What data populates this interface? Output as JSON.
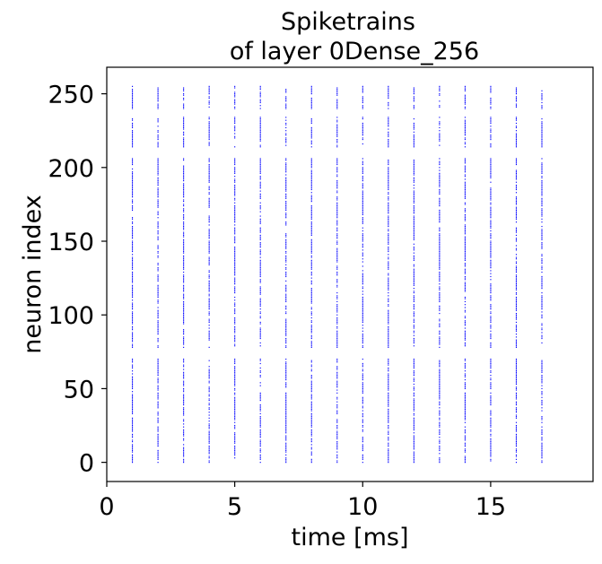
{
  "chart_data": {
    "type": "scatter",
    "title_lines": [
      "Spiketrains",
      "of layer 0Dense_256"
    ],
    "xlabel": "time [ms]",
    "ylabel": "neuron index",
    "xlim": [
      0,
      19
    ],
    "ylim": [
      -13,
      268
    ],
    "xticks": [
      0,
      5,
      10,
      15
    ],
    "yticks": [
      0,
      50,
      100,
      150,
      200,
      250
    ],
    "grid": false,
    "legend": "none",
    "marker_color": "#0000ff",
    "spike_times": [
      1,
      2,
      3,
      4,
      5,
      6,
      7,
      8,
      9,
      10,
      11,
      12,
      13,
      14,
      15,
      16,
      17
    ],
    "neuron_count": 256,
    "spikes_per_neuron": "one spike per integer time step 1–17 for most neurons (dense raster)"
  }
}
